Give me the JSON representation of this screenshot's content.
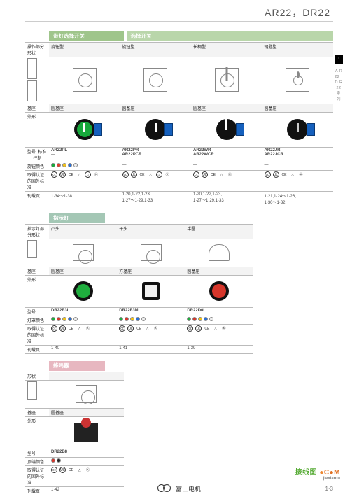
{
  "header": {
    "model_line": "AR22，DR22"
  },
  "side_tab": {
    "chapter": "1",
    "series_text": "A R 22 · D R 22 系 列"
  },
  "footer": {
    "brand_text": "富士电机",
    "page_number": "1·3",
    "watermark_main": "接线图",
    "watermark_domain": "jiexiantu"
  },
  "sections": {
    "selector_switch_lamp": {
      "title": "带灯选择开关",
      "header_bg": "#9fc58b"
    },
    "selector_switch": {
      "title": "选择开关",
      "header_bg": "#b9d6aa"
    },
    "indicator": {
      "title": "指示灯",
      "header_bg": "#a4c7b5"
    },
    "buzzer": {
      "title": "蜂鸣器",
      "header_bg": "#e7b7c0"
    }
  },
  "labels": {
    "operator_shape": "操作部分形状",
    "indicator_shape": "指示灯部分形状",
    "shape": "形状",
    "base": "基座",
    "appearance": "外形",
    "model": "型号",
    "model_std": "标准",
    "model_ctrl": "控制",
    "knob_color": "旋钮颜色",
    "lamp_color": "灯罩颜色",
    "top_color": "顶端颜色",
    "certs": "取得认证的国外标准",
    "page_ref": "刊载页",
    "icon_ref": "图标"
  },
  "column_types": {
    "rotary": "旋钮型",
    "lever": "长柄型",
    "key": "钥匙型",
    "convex": "凸头",
    "flat": "平头",
    "dome": "半圆",
    "round_base": "圆基座",
    "square_base": "方基座"
  },
  "selector": {
    "cols": [
      "rotary_lamp",
      "rotary",
      "lever",
      "key"
    ],
    "type_row": {
      "rotary_lamp": "旋钮型",
      "rotary": "旋钮型",
      "lever": "长柄型",
      "key": "钥匙型"
    },
    "base_row": {
      "rotary_lamp": "圆基座",
      "rotary": "圆基座",
      "lever": "圆基座",
      "key": "圆基座"
    },
    "knob_face": {
      "rotary_lamp": "#17a83b",
      "rotary": "#111111",
      "lever": "#111111",
      "key": "#111111"
    },
    "model": {
      "rotary_lamp": {
        "std": "AR22PL",
        "ctrl": "—"
      },
      "rotary": {
        "std": "AR22PR",
        "ctrl": "AR22PCR"
      },
      "lever": {
        "std": "AR22WR",
        "ctrl": "AR22WCR"
      },
      "key": {
        "std": "AR22JR",
        "ctrl": "AR22JCR"
      }
    },
    "knob_color": {
      "rotary_lamp": [
        "#17a83b",
        "#e23b2e",
        "#f2c21a",
        "#2a6fd6",
        "#eeeeee"
      ],
      "rotary": "—",
      "lever": "—",
      "key": "—"
    },
    "certs": {
      "rotary_lamp": [
        "CCC",
        "UL",
        "CE",
        "TUV",
        "LR",
        "KC"
      ],
      "rotary": [
        "CCC",
        "UL",
        "CE",
        "TUV",
        "LR",
        "KC"
      ],
      "lever": [
        "CCC",
        "UL",
        "CE",
        "TUV",
        "KC"
      ],
      "key": [
        "CCC",
        "UL",
        "CE",
        "TUV",
        "KC"
      ]
    },
    "page_ref": {
      "rotary_lamp": "1·34～1·38",
      "rotary": "1·20,1·22,1·23,\n1·27～1·29,1·33",
      "lever": "1·20,1·22,1·23,\n1·27～1·29,1·33",
      "key": "1·21,1·24～1·26,\n1·30～1·32"
    }
  },
  "indicator": {
    "cols": [
      "convex",
      "flat",
      "dome"
    ],
    "type_row": {
      "convex": "凸头",
      "flat": "平头",
      "dome": "半圆"
    },
    "base_row": {
      "convex": "圆基座",
      "flat": "方基座",
      "dome": "圆基座"
    },
    "lamp_face": {
      "convex": "#1fae3e",
      "flat": "#f2f2f2",
      "dome": "#d6362b"
    },
    "model": {
      "convex": "DR22E3L",
      "flat": "DR22F3M",
      "dome": "DR22D0L"
    },
    "lamp_color": {
      "convex": [
        "#1fae3e",
        "#d6362b",
        "#f2c21a",
        "#2a6fd6",
        "#eeeeee"
      ],
      "flat": [
        "#1fae3e",
        "#d6362b",
        "#f2c21a",
        "#2a6fd6",
        "#eeeeee"
      ],
      "dome": [
        "#1fae3e",
        "#d6362b",
        "#f2c21a",
        "#2a6fd6",
        "#eeeeee"
      ]
    },
    "certs": {
      "convex": [
        "CCC",
        "UL",
        "CE",
        "TUV",
        "KC"
      ],
      "flat": [
        "CCC",
        "UL",
        "CE",
        "TUV",
        "KC"
      ],
      "dome": [
        "CCC",
        "UL",
        "CE",
        "TUV",
        "KC"
      ]
    },
    "page_ref": {
      "convex": "1·40",
      "flat": "1·41",
      "dome": "1·39"
    }
  },
  "buzzer": {
    "base": "圆基座",
    "model": "DR22B8",
    "top_color": [
      "#d6362b",
      "#222222"
    ],
    "certs": [
      "CCC",
      "UL",
      "CE",
      "TUV",
      "KC"
    ],
    "page_ref": "1·42"
  },
  "cert_style": {
    "CCC": {
      "text": "㏄",
      "bg": "#ffffff",
      "border": "#333333",
      "color": "#333333"
    },
    "UL": {
      "text": "UL",
      "bg": "#ffffff",
      "border": "#333333",
      "color": "#333333"
    },
    "CE": {
      "text": "CE",
      "bg": "#ffffff",
      "border": "#ffffff",
      "color": "#333333"
    },
    "TUV": {
      "text": "△",
      "bg": "#ffffff",
      "border": "#ffffff",
      "color": "#333333"
    },
    "LR": {
      "text": "⌂",
      "bg": "#ffffff",
      "border": "#333333",
      "color": "#333333"
    },
    "KC": {
      "text": "Ⓚ",
      "bg": "#ffffff",
      "border": "#ffffff",
      "color": "#333333"
    }
  }
}
